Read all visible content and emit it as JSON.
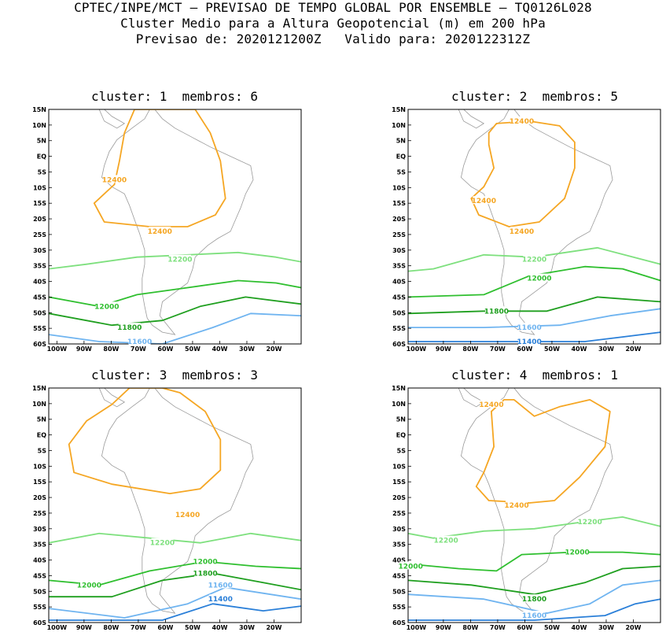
{
  "header": {
    "line1": "CPTEC/INPE/MCT – PREVISAO DE TEMPO GLOBAL POR ENSEMBLE – TQ0126L028",
    "line2": "Cluster Medio para a Altura Geopotencial (m) em 200 hPa",
    "line3": "Previsao de: 2020121200Z   Valido para: 2020122312Z"
  },
  "axes": {
    "lat_labels": [
      "15N",
      "10N",
      "5N",
      "EQ",
      "5S",
      "10S",
      "15S",
      "20S",
      "25S",
      "30S",
      "35S",
      "40S",
      "45S",
      "50S",
      "55S",
      "60S"
    ],
    "lon_labels": [
      "100W",
      "90W",
      "80W",
      "70W",
      "60W",
      "50W",
      "40W",
      "30W",
      "20W"
    ]
  },
  "colors": {
    "c12400": "#f5a623",
    "c12200": "#7ee07e",
    "c12000": "#2fbf2f",
    "c11800": "#1f9f1f",
    "c11600": "#6fb4f0",
    "c11400": "#2a7fd8",
    "coast": "#9a9a9a"
  },
  "panels": [
    {
      "title": "cluster: 1  membros: 6",
      "labels": [
        {
          "text": "12400",
          "color": "c12400"
        },
        {
          "text": "12400",
          "color": "c12400"
        },
        {
          "text": "12200",
          "color": "c12200"
        },
        {
          "text": "12000",
          "color": "c12000"
        },
        {
          "text": "11800",
          "color": "c11800"
        },
        {
          "text": "11600",
          "color": "c11600"
        }
      ]
    },
    {
      "title": "cluster: 2  membros: 5",
      "labels": [
        {
          "text": "12400",
          "color": "c12400"
        },
        {
          "text": "12400",
          "color": "c12400"
        },
        {
          "text": "12400",
          "color": "c12400"
        },
        {
          "text": "12200",
          "color": "c12200"
        },
        {
          "text": "12000",
          "color": "c12000"
        },
        {
          "text": "11800",
          "color": "c11800"
        },
        {
          "text": "11600",
          "color": "c11600"
        },
        {
          "text": "11400",
          "color": "c11400"
        }
      ]
    },
    {
      "title": "cluster: 3  membros: 3",
      "labels": [
        {
          "text": "12400",
          "color": "c12400"
        },
        {
          "text": "12200",
          "color": "c12200"
        },
        {
          "text": "12000",
          "color": "c12000"
        },
        {
          "text": "12000",
          "color": "c12000"
        },
        {
          "text": "11800",
          "color": "c11800"
        },
        {
          "text": "11600",
          "color": "c11600"
        },
        {
          "text": "11400",
          "color": "c11400"
        }
      ]
    },
    {
      "title": "cluster: 4  membros: 1",
      "labels": [
        {
          "text": "12400",
          "color": "c12400"
        },
        {
          "text": "12400",
          "color": "c12400"
        },
        {
          "text": "12200",
          "color": "c12200"
        },
        {
          "text": "12200",
          "color": "c12200"
        },
        {
          "text": "12000",
          "color": "c12000"
        },
        {
          "text": "12000",
          "color": "c12000"
        },
        {
          "text": "11800",
          "color": "c11800"
        },
        {
          "text": "11600",
          "color": "c11600"
        }
      ]
    }
  ]
}
